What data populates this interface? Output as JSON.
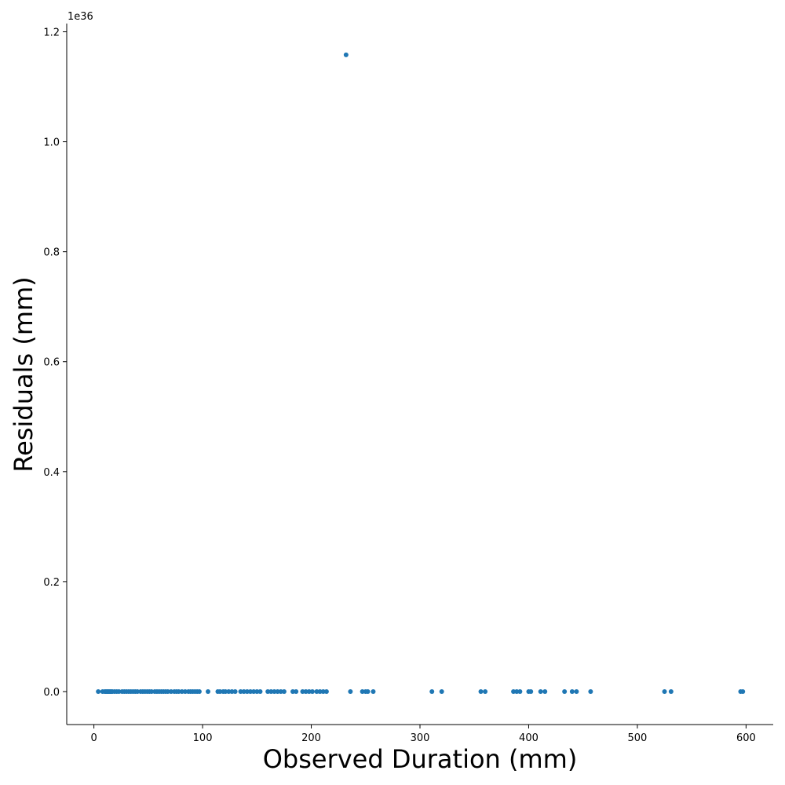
{
  "chart_data": {
    "type": "scatter",
    "xlabel": "Observed Duration (mm)",
    "ylabel": "Residuals (mm)",
    "y_offset_text": "1e36",
    "xlim": [
      -25,
      625
    ],
    "ylim": [
      -0.06,
      1.215
    ],
    "x_ticks": [
      0,
      100,
      200,
      300,
      400,
      500,
      600
    ],
    "x_tick_labels": [
      "0",
      "100",
      "200",
      "300",
      "400",
      "500",
      "600"
    ],
    "y_ticks": [
      0.0,
      0.2,
      0.4,
      0.6,
      0.8,
      1.0,
      1.2
    ],
    "y_tick_labels": [
      "0.0",
      "0.2",
      "0.4",
      "0.6",
      "0.8",
      "1.0",
      "1.2"
    ],
    "grid": false,
    "marker_color": "#1f77b4",
    "series": [
      {
        "points": [
          [
            4,
            0
          ],
          [
            8,
            0
          ],
          [
            10,
            0
          ],
          [
            11,
            0
          ],
          [
            12,
            0
          ],
          [
            13,
            0
          ],
          [
            14,
            0
          ],
          [
            15,
            0
          ],
          [
            16,
            0
          ],
          [
            17,
            0
          ],
          [
            19,
            0
          ],
          [
            21,
            0
          ],
          [
            23,
            0
          ],
          [
            26,
            0
          ],
          [
            28,
            0
          ],
          [
            30,
            0
          ],
          [
            32,
            0
          ],
          [
            34,
            0
          ],
          [
            36,
            0
          ],
          [
            38,
            0
          ],
          [
            40,
            0
          ],
          [
            43,
            0
          ],
          [
            45,
            0
          ],
          [
            47,
            0
          ],
          [
            49,
            0
          ],
          [
            51,
            0
          ],
          [
            53,
            0
          ],
          [
            56,
            0
          ],
          [
            58,
            0
          ],
          [
            60,
            0
          ],
          [
            62,
            0
          ],
          [
            64,
            0
          ],
          [
            66,
            0
          ],
          [
            68,
            0
          ],
          [
            71,
            0
          ],
          [
            74,
            0
          ],
          [
            76,
            0
          ],
          [
            78,
            0
          ],
          [
            81,
            0
          ],
          [
            84,
            0
          ],
          [
            87,
            0
          ],
          [
            89,
            0
          ],
          [
            91,
            0
          ],
          [
            93,
            0
          ],
          [
            95,
            0
          ],
          [
            97,
            0
          ],
          [
            105,
            0
          ],
          [
            114,
            0
          ],
          [
            116,
            0
          ],
          [
            119,
            0
          ],
          [
            121,
            0
          ],
          [
            124,
            0
          ],
          [
            127,
            0
          ],
          [
            130,
            0
          ],
          [
            135,
            0
          ],
          [
            138,
            0
          ],
          [
            141,
            0
          ],
          [
            144,
            0
          ],
          [
            147,
            0
          ],
          [
            150,
            0
          ],
          [
            153,
            0
          ],
          [
            160,
            0
          ],
          [
            163,
            0
          ],
          [
            166,
            0
          ],
          [
            169,
            0
          ],
          [
            172,
            0
          ],
          [
            175,
            0
          ],
          [
            183,
            0
          ],
          [
            186,
            0
          ],
          [
            192,
            0
          ],
          [
            195,
            0
          ],
          [
            198,
            0
          ],
          [
            201,
            0
          ],
          [
            205,
            0
          ],
          [
            208,
            0
          ],
          [
            211,
            0
          ],
          [
            214,
            0
          ],
          [
            232,
            1.158
          ],
          [
            236,
            0
          ],
          [
            247,
            0
          ],
          [
            250,
            0
          ],
          [
            252,
            0
          ],
          [
            257,
            0
          ],
          [
            311,
            0
          ],
          [
            320,
            0
          ],
          [
            356,
            0
          ],
          [
            360,
            0
          ],
          [
            386,
            0
          ],
          [
            389,
            0
          ],
          [
            392,
            0
          ],
          [
            400,
            0
          ],
          [
            402,
            0
          ],
          [
            411,
            0
          ],
          [
            415,
            0
          ],
          [
            433,
            0
          ],
          [
            440,
            0
          ],
          [
            444,
            0
          ],
          [
            457,
            0
          ],
          [
            525,
            0
          ],
          [
            531,
            0
          ],
          [
            595,
            0
          ],
          [
            597,
            0
          ]
        ]
      }
    ]
  }
}
